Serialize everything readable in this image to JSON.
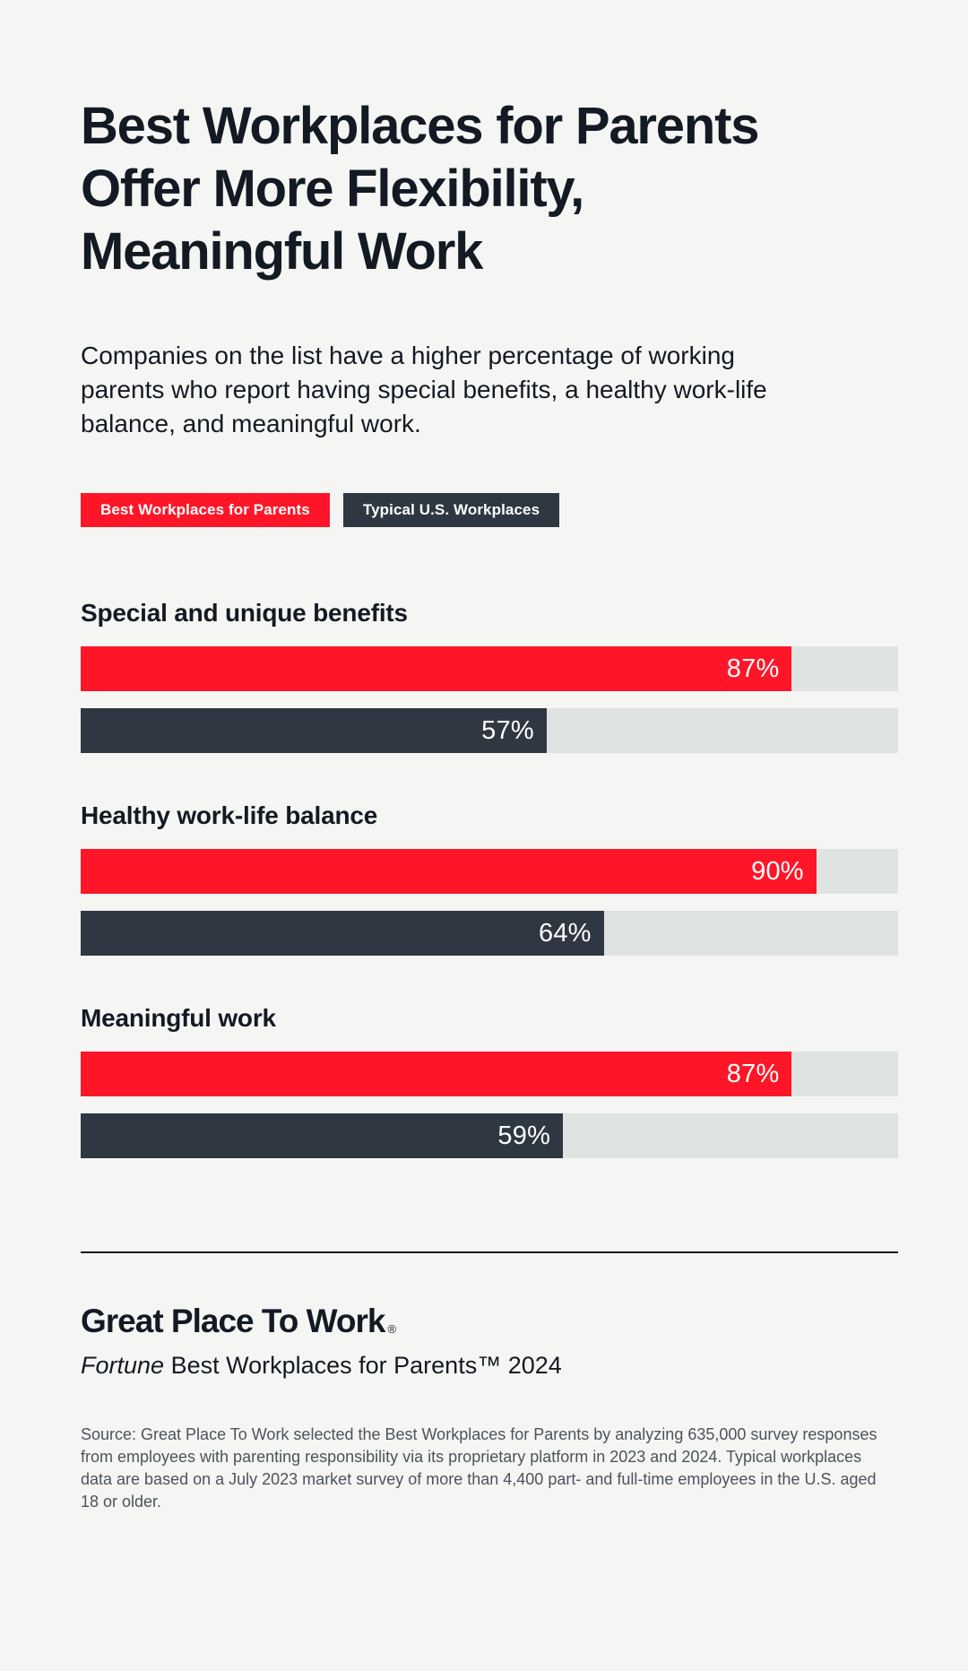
{
  "page": {
    "background": "#f5f6f4",
    "ink": "#141a24"
  },
  "header": {
    "title_lines": [
      "Best Workplaces for Parents",
      "Offer More Flexibility,",
      "Meaningful Work"
    ],
    "subtitle": "Companies on the list have a higher percentage of working parents who report having special benefits, a healthy work-life balance, and meaningful work."
  },
  "legend": [
    {
      "label": "Best Workplaces for Parents",
      "color": "#fe1628"
    },
    {
      "label": "Typical U.S. Workplaces",
      "color": "#2f3842"
    }
  ],
  "chart_data": {
    "type": "bar",
    "orientation": "horizontal",
    "unit": "percent",
    "xlim": [
      0,
      100
    ],
    "grid": false,
    "legend_position": "top",
    "track_color": "#dfe3e1",
    "series_names": [
      "Best Workplaces for Parents",
      "Typical U.S. Workplaces"
    ],
    "series_colors": [
      "#fe1628",
      "#2f3842"
    ],
    "groups": [
      {
        "category": "Special and unique benefits",
        "values": [
          87,
          57
        ],
        "labels": [
          "87%",
          "57%"
        ]
      },
      {
        "category": "Healthy work-life balance",
        "values": [
          90,
          64
        ],
        "labels": [
          "90%",
          "64%"
        ]
      },
      {
        "category": "Meaningful work",
        "values": [
          87,
          59
        ],
        "labels": [
          "87%",
          "59%"
        ]
      }
    ]
  },
  "footer": {
    "logo_text": "Great Place To Work",
    "logo_mark": "®",
    "fortune_italic": "Fortune",
    "fortune_rest": " Best Workplaces for Parents™ 2024",
    "source": "Source: Great Place To Work selected the Best Workplaces for Parents by analyzing 635,000 survey responses from employees with parenting responsibility via its proprietary platform in 2023 and 2024. Typical workplaces data are based on a July 2023 market survey of more than 4,400 part- and full-time employees in the U.S. aged 18 or older."
  }
}
